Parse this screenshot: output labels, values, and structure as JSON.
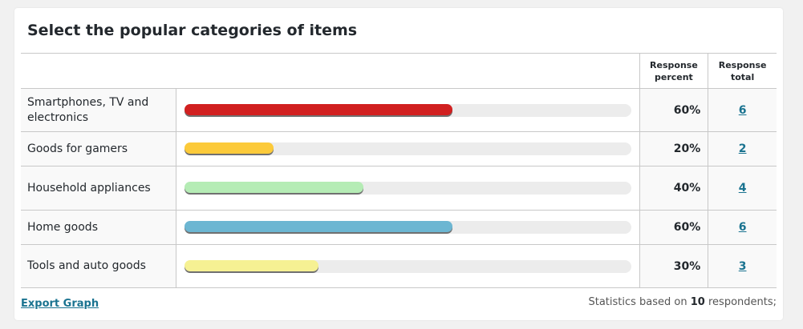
{
  "title": "Select the popular categories of items",
  "headers": {
    "percent": "Response percent",
    "total": "Response total"
  },
  "rows": [
    {
      "label": "Smartphones, TV and electronics",
      "percent": 60,
      "percent_text": "60%",
      "total": "6",
      "color": "#d12020"
    },
    {
      "label": "Goods for gamers",
      "percent": 20,
      "percent_text": "20%",
      "total": "2",
      "color": "#fcca3a"
    },
    {
      "label": "Household appliances",
      "percent": 40,
      "percent_text": "40%",
      "total": "4",
      "color": "#b5ecb5"
    },
    {
      "label": "Home goods",
      "percent": 60,
      "percent_text": "60%",
      "total": "6",
      "color": "#6cb6d2"
    },
    {
      "label": "Tools and auto goods",
      "percent": 30,
      "percent_text": "30%",
      "total": "3",
      "color": "#f6f193"
    }
  ],
  "footer": {
    "export_label": "Export Graph",
    "stats_prefix": "Statistics based on",
    "stats_count": "10",
    "stats_suffix": "respondents;"
  }
}
